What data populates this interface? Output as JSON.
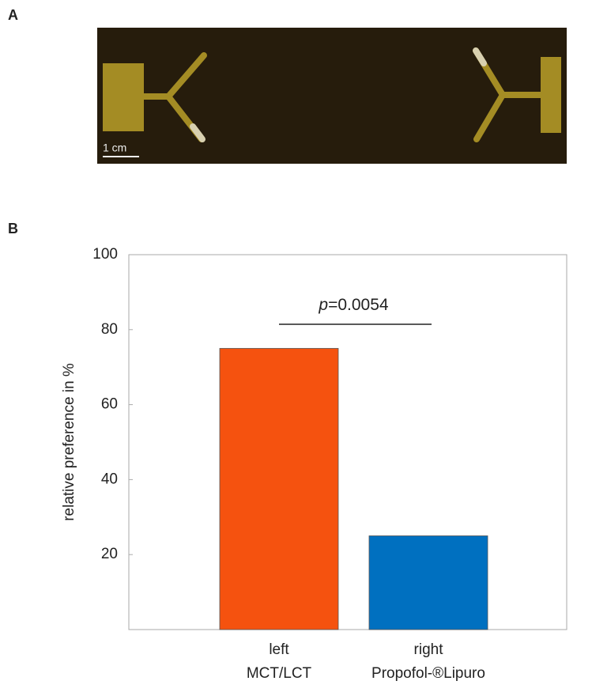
{
  "panel_a": {
    "label": "A",
    "scale_bar": "1 cm"
  },
  "chart_data": {
    "type": "bar",
    "panel_label": "B",
    "y_label": "relative preference in %",
    "categories": [
      "left",
      "right"
    ],
    "category_sublabels": [
      "MCT/LCT",
      "Propofol-®Lipuro"
    ],
    "values": [
      75,
      25
    ],
    "colors": [
      "#f5520f",
      "#0070c0"
    ],
    "ylim": [
      0,
      100
    ],
    "yticks": [
      20,
      40,
      60,
      80,
      100
    ],
    "annotation": {
      "italic": "p",
      "text": "=0.0054"
    }
  }
}
